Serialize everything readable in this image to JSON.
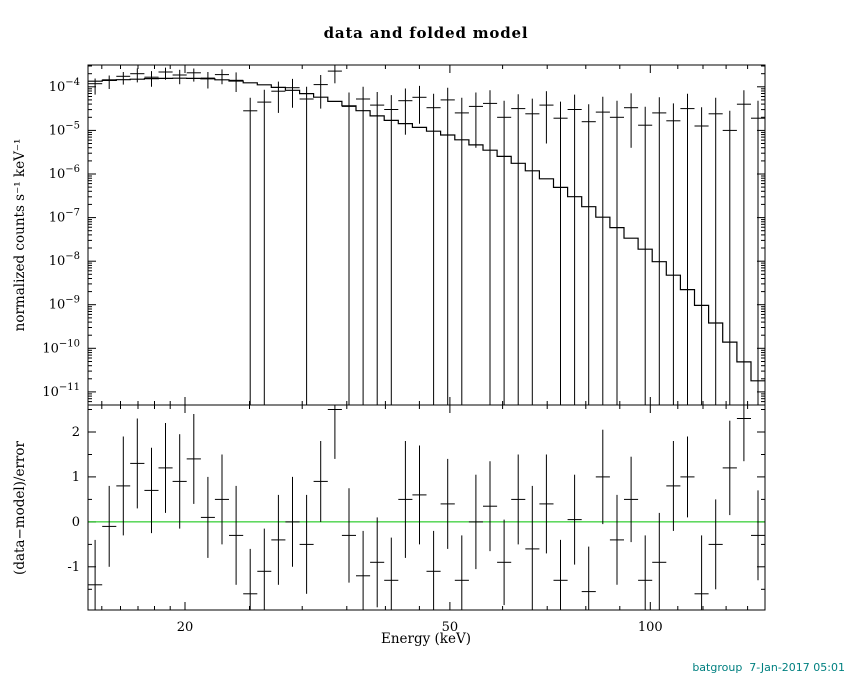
{
  "chart": {
    "title": "data and folded model",
    "xlabel": "Energy (keV)",
    "ylabel_top": "normalized counts s⁻¹ keV⁻¹",
    "ylabel_bottom": "(data−model)/error",
    "footer": "batgroup  7-Jan-2017 05:01"
  },
  "chart_data": [
    {
      "type": "scatter",
      "title": "data and folded model",
      "xlabel": "Energy (keV)",
      "ylabel": "normalized counts s⁻¹ keV⁻¹",
      "xscale": "log",
      "yscale": "log",
      "xlim": [
        14.3,
        148.7
      ],
      "ylim_log": [
        -11.3,
        -3.5
      ],
      "grid": false,
      "legend": false,
      "x_ticks_labeled": [
        20,
        50,
        100
      ],
      "x_ticks_minor": [
        15,
        16,
        17,
        18,
        19,
        25,
        30,
        35,
        40,
        45,
        60,
        70,
        80,
        90,
        110,
        120,
        130,
        140
      ],
      "y_tick_exponents": [
        -4,
        -5,
        -6,
        -7,
        -8,
        -9,
        -10,
        -11
      ],
      "bin_edges": [
        14.3,
        15.02,
        15.77,
        16.55,
        17.38,
        18.25,
        19.16,
        20.12,
        21.13,
        22.18,
        23.29,
        24.46,
        25.68,
        26.96,
        28.31,
        29.73,
        31.21,
        32.78,
        34.42,
        36.14,
        37.94,
        39.84,
        41.83,
        43.92,
        46.12,
        48.42,
        50.85,
        53.39,
        56.06,
        58.86,
        61.8,
        64.89,
        68.14,
        71.55,
        75.12,
        78.88,
        82.82,
        86.96,
        91.31,
        95.88,
        100.67,
        105.71,
        110.99,
        116.54,
        122.36,
        128.48,
        134.91,
        141.65,
        148.7
      ],
      "data": {
        "log_y": [
          -3.93,
          -3.84,
          -3.76,
          -3.7,
          -3.78,
          -3.66,
          -3.73,
          -3.68,
          -3.8,
          -3.72,
          -3.85,
          -4.55,
          -4.35,
          -4.1,
          -4.02,
          -4.28,
          -3.95,
          -3.64,
          -4.45,
          -4.28,
          -4.42,
          -4.52,
          -4.32,
          -4.24,
          -4.48,
          -4.3,
          -4.6,
          -4.45,
          -4.38,
          -4.7,
          -4.5,
          -4.62,
          -4.42,
          -4.72,
          -4.52,
          -4.8,
          -4.58,
          -4.7,
          -4.48,
          -4.88,
          -4.6,
          -4.78,
          -4.5,
          -4.9,
          -4.62,
          -5.0,
          -4.4,
          -4.72
        ],
        "err_up_dex": [
          0.12,
          0.1,
          0.1,
          0.12,
          0.14,
          0.1,
          0.12,
          0.1,
          0.14,
          0.12,
          0.18,
          0.3,
          0.28,
          0.22,
          0.2,
          0.28,
          0.22,
          0.15,
          0.32,
          0.28,
          0.3,
          0.33,
          0.28,
          0.26,
          0.32,
          0.28,
          0.35,
          0.32,
          0.3,
          0.38,
          0.33,
          0.35,
          0.32,
          0.38,
          0.34,
          0.4,
          0.35,
          0.38,
          0.33,
          0.42,
          0.36,
          0.4,
          0.34,
          0.43,
          0.37,
          0.45,
          0.32,
          0.4
        ],
        "err_lo_log": [
          -4.18,
          -4.05,
          -3.95,
          -3.9,
          -4.0,
          -3.84,
          -3.94,
          -3.88,
          -4.04,
          -3.94,
          -4.12,
          -11.3,
          -11.3,
          -4.6,
          -4.48,
          -11.3,
          -4.5,
          -3.92,
          -11.3,
          -11.3,
          -11.3,
          -11.3,
          -5.1,
          -4.85,
          -11.3,
          -11.3,
          -11.3,
          -5.4,
          -11.3,
          -11.3,
          -11.3,
          -11.3,
          -5.3,
          -11.3,
          -11.3,
          -11.3,
          -11.3,
          -11.3,
          -5.4,
          -11.3,
          -11.3,
          -11.3,
          -11.3,
          -11.3,
          -11.3,
          -11.3,
          -11.3,
          -11.3
        ]
      },
      "model": {
        "energy": [
          14.3,
          16,
          18,
          20,
          22,
          24,
          26,
          28,
          30,
          32,
          34,
          36,
          38,
          40,
          43,
          46,
          50,
          54,
          58,
          62,
          66,
          70,
          75,
          80,
          85,
          90,
          95,
          100,
          106,
          112,
          118,
          124,
          130,
          136,
          142,
          148.7
        ],
        "log_flux": [
          -3.88,
          -3.84,
          -3.81,
          -3.8,
          -3.82,
          -3.87,
          -3.94,
          -4.03,
          -4.13,
          -4.24,
          -4.36,
          -4.48,
          -4.61,
          -4.74,
          -4.85,
          -4.97,
          -5.12,
          -5.3,
          -5.48,
          -5.68,
          -5.9,
          -6.12,
          -6.4,
          -6.7,
          -7.0,
          -7.28,
          -7.55,
          -7.82,
          -8.18,
          -8.54,
          -8.92,
          -9.32,
          -9.74,
          -10.16,
          -10.56,
          -10.95
        ]
      }
    },
    {
      "type": "scatter",
      "xlabel": "Energy (keV)",
      "ylabel": "(data−model)/error",
      "xscale": "log",
      "ylim": [
        -1.96,
        2.6
      ],
      "y_ticks_labeled": [
        -1,
        0,
        1,
        2
      ],
      "y_ticks_minor": [
        -1.5,
        -0.5,
        0.5,
        1.5,
        2.5
      ],
      "zero_line_color": "#00c000",
      "values": [
        -1.4,
        -0.1,
        0.8,
        1.3,
        0.7,
        1.2,
        0.9,
        1.4,
        0.1,
        0.5,
        -0.3,
        -1.6,
        -1.1,
        -0.4,
        0.0,
        -0.5,
        0.9,
        2.5,
        -0.3,
        -1.2,
        -0.9,
        -1.3,
        0.5,
        0.6,
        -1.1,
        0.4,
        -1.3,
        0.0,
        0.35,
        -0.9,
        0.5,
        -0.6,
        0.4,
        -1.3,
        0.05,
        -1.55,
        1.0,
        -0.4,
        0.5,
        -1.3,
        -0.9,
        0.8,
        1.0,
        -1.6,
        -0.5,
        1.2,
        2.3,
        -0.3
      ],
      "errors": [
        1.0,
        0.9,
        1.1,
        1.0,
        0.95,
        1.0,
        1.05,
        1.0,
        0.9,
        1.0,
        1.1,
        1.0,
        0.95,
        1.0,
        1.0,
        1.1,
        0.9,
        1.1,
        1.05,
        1.0,
        1.0,
        0.95,
        1.3,
        1.1,
        0.9,
        1.0,
        1.0,
        1.05,
        1.0,
        0.95,
        1.0,
        1.4,
        1.1,
        0.9,
        1.0,
        1.0,
        1.05,
        1.0,
        0.95,
        1.0,
        1.1,
        1.0,
        0.9,
        1.3,
        1.0,
        1.05,
        0.95,
        1.0
      ]
    }
  ]
}
